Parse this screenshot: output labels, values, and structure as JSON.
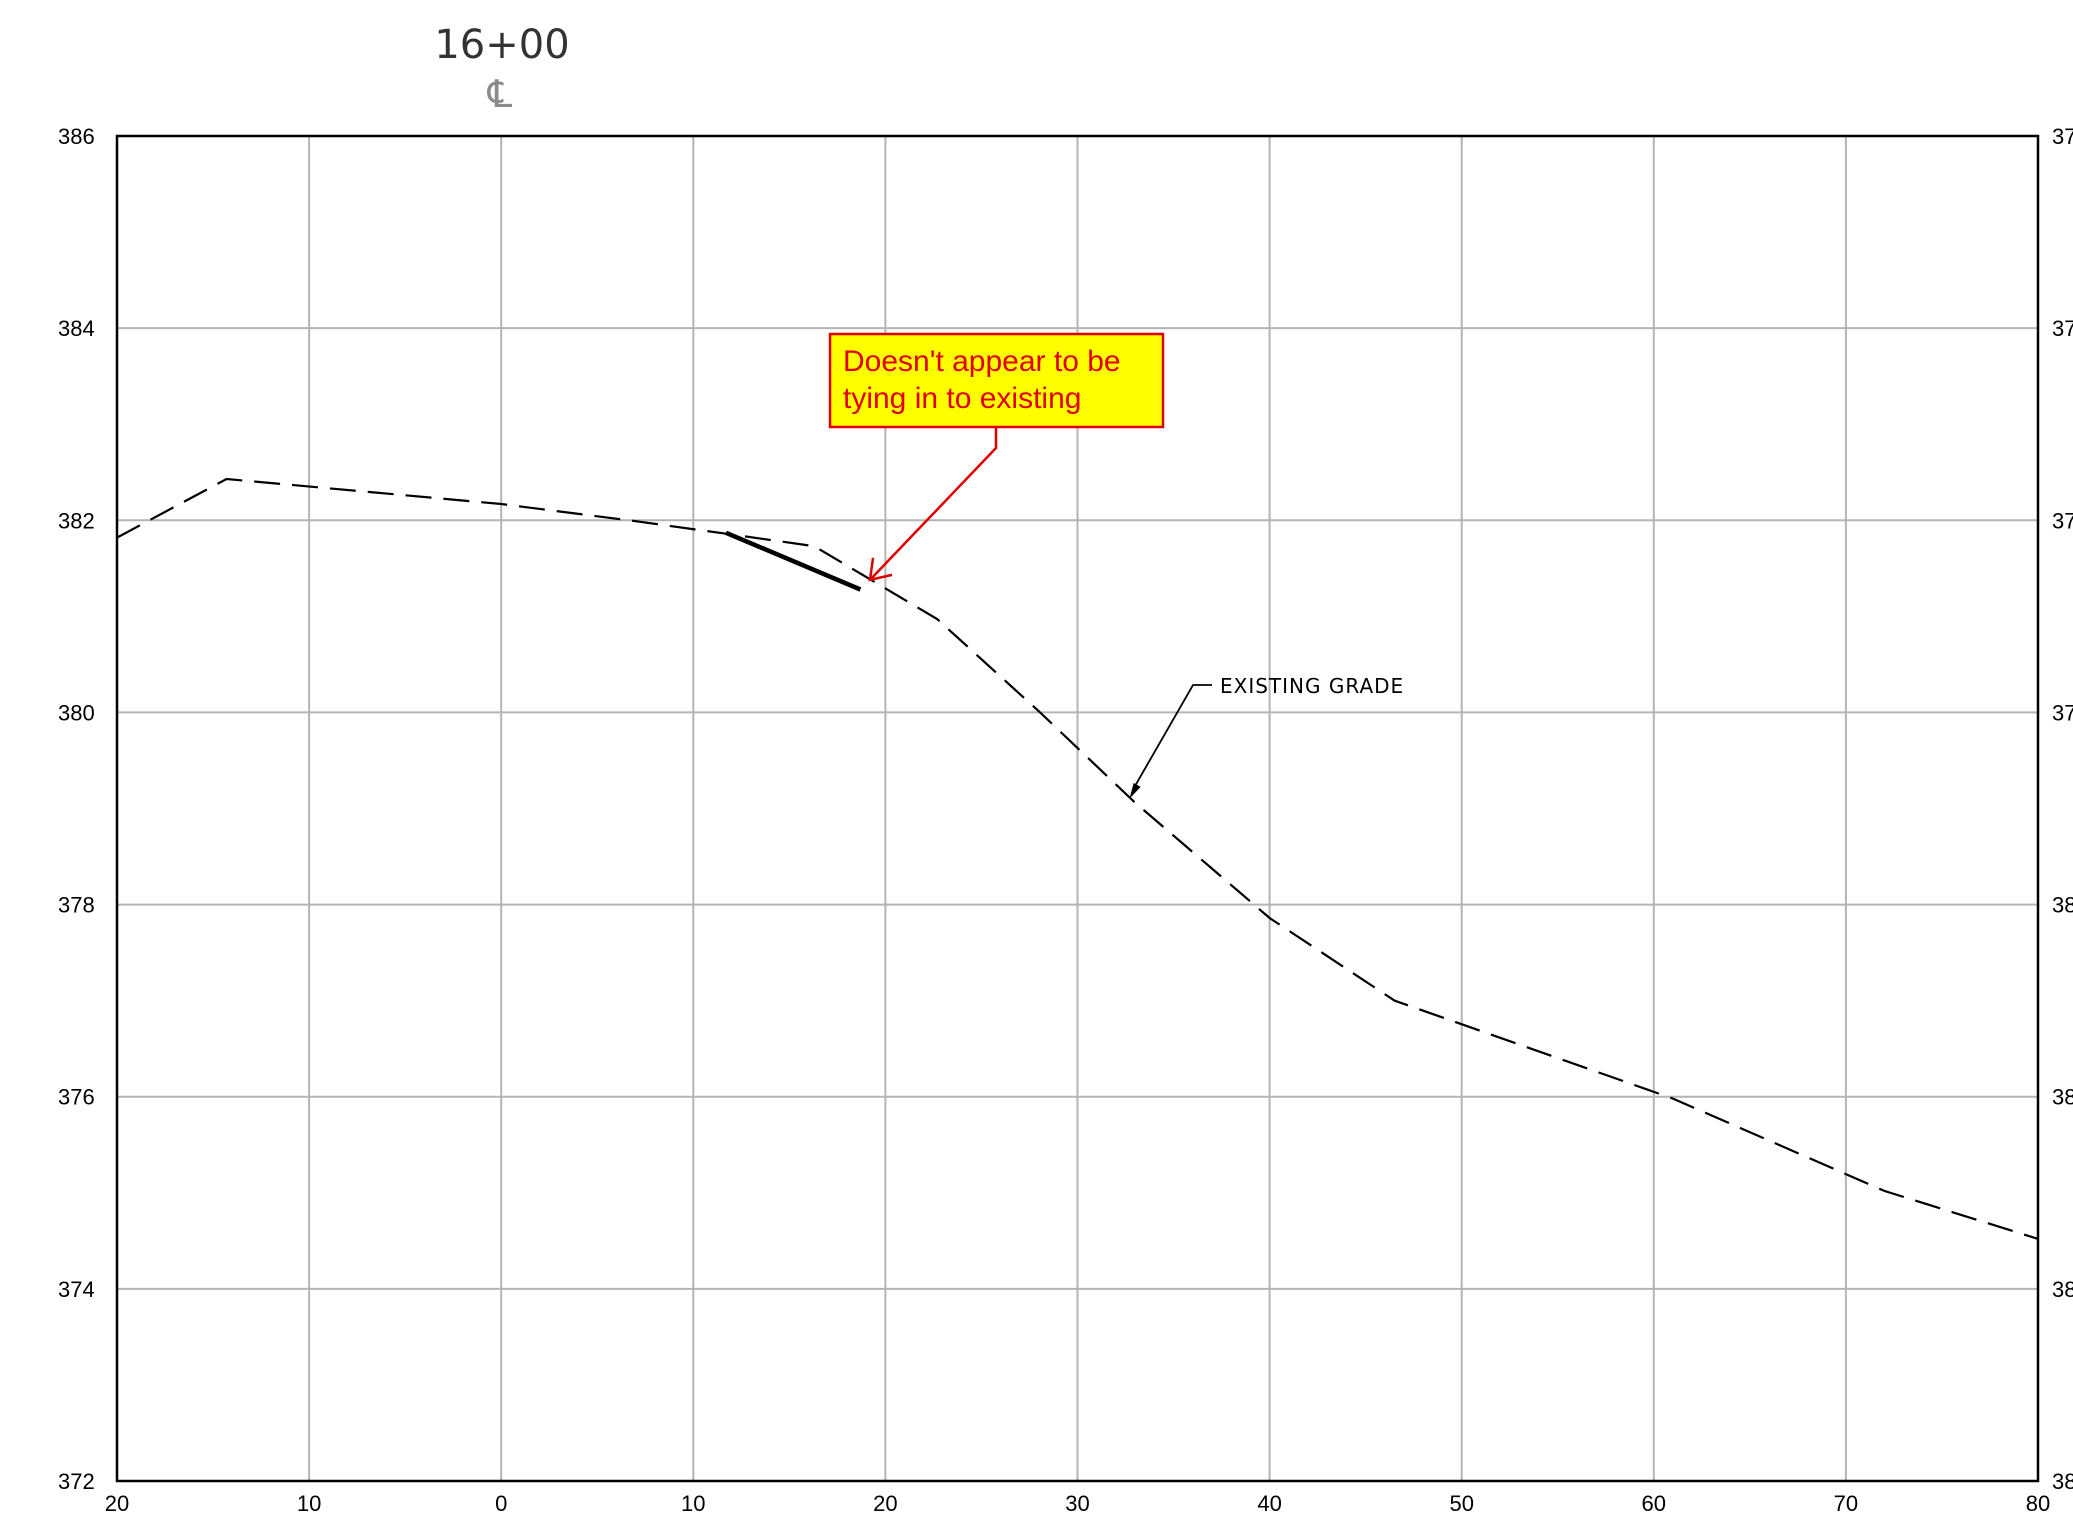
{
  "header": {
    "station": "16+00",
    "centerline_symbol": "℄"
  },
  "chart_data": {
    "type": "line",
    "title": "",
    "xlabel": "",
    "ylabel": "",
    "xlim": [
      -20,
      80
    ],
    "ylim": [
      372,
      386
    ],
    "x_ticks": [
      -20,
      -10,
      0,
      10,
      20,
      30,
      40,
      50,
      60,
      70,
      80
    ],
    "x_tick_labels": [
      "20",
      "10",
      "0",
      "10",
      "20",
      "30",
      "40",
      "50",
      "60",
      "70",
      "80"
    ],
    "y_ticks": [
      372,
      374,
      376,
      378,
      380,
      382,
      384,
      386
    ],
    "y_tick_labels": [
      "372",
      "374",
      "376",
      "378",
      "380",
      "382",
      "384",
      "386"
    ],
    "right_axis_labels_partial": [
      "38",
      "38",
      "38",
      "38",
      "37",
      "37",
      "37",
      "37"
    ],
    "grid": true,
    "series": [
      {
        "name": "EXISTING GRADE",
        "style": "dashed",
        "color": "#000000",
        "x": [
          -20,
          -14.3,
          0,
          7,
          11.7,
          16.3,
          22.7,
          28,
          33,
          40,
          46.5,
          61,
          72,
          80
        ],
        "y": [
          381.82,
          382.43,
          382.17,
          381.99,
          381.86,
          381.73,
          380.97,
          380.01,
          379.06,
          377.86,
          377.0,
          375.98,
          375.02,
          374.52
        ]
      },
      {
        "name": "",
        "style": "solid",
        "color": "#000000",
        "x": [
          11.7,
          18.7
        ],
        "y": [
          381.87,
          381.28
        ]
      }
    ],
    "annotations": [
      {
        "text": "EXISTING GRADE",
        "points_to": [
          32.7,
          379.1
        ]
      },
      {
        "text_lines": [
          "Doesn't appear to be",
          "tying in to existing"
        ],
        "points_to": [
          19.2,
          381.38
        ],
        "text_color": "#e00000",
        "background": "#ffff00"
      }
    ]
  }
}
